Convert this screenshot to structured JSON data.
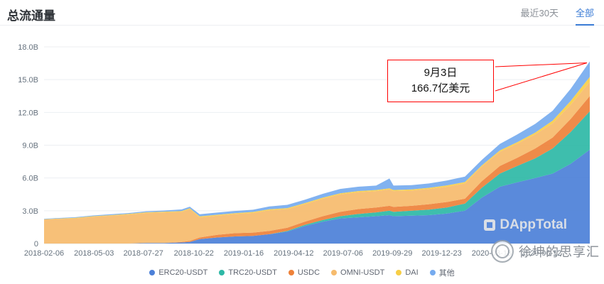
{
  "header": {
    "title": "总流通量",
    "tabs": [
      {
        "label": "最近30天",
        "active": false
      },
      {
        "label": "全部",
        "active": true
      }
    ]
  },
  "annotation": {
    "date": "9月3日",
    "value": "166.7亿美元"
  },
  "watermarks": {
    "chart": "DAppTotal",
    "stamp": "徐坤的思享汇"
  },
  "colors": {
    "accent_blue": "#3a7bd5",
    "annotation_red": "#ff0000",
    "grid": "#eceff2",
    "axis_text": "#66727e"
  },
  "chart_data": {
    "type": "area",
    "stacked": true,
    "title": "总流通量",
    "xlabel": "",
    "ylabel": "",
    "ylim": [
      0,
      18
    ],
    "grid": true,
    "legend_position": "bottom",
    "yticks": [
      {
        "v": 0,
        "label": "0"
      },
      {
        "v": 3,
        "label": "3.0B"
      },
      {
        "v": 6,
        "label": "6.0B"
      },
      {
        "v": 9,
        "label": "9.0B"
      },
      {
        "v": 12,
        "label": "12.0B"
      },
      {
        "v": 15,
        "label": "15.0B"
      },
      {
        "v": 18,
        "label": "18.0B"
      }
    ],
    "xticks": [
      "2018-02-06",
      "2018-05-03",
      "2018-07-27",
      "2018-10-22",
      "2019-01-16",
      "2019-04-12",
      "2019-07-06",
      "2019-09-29",
      "2019-12-23",
      "2020-03-18",
      "2020-06-12"
    ],
    "x": [
      "2018-02-06",
      "2018-03-01",
      "2018-04-01",
      "2018-05-01",
      "2018-06-01",
      "2018-07-01",
      "2018-08-01",
      "2018-09-01",
      "2018-10-01",
      "2018-10-15",
      "2018-11-01",
      "2018-12-01",
      "2019-01-01",
      "2019-02-01",
      "2019-03-01",
      "2019-04-01",
      "2019-05-01",
      "2019-06-01",
      "2019-07-01",
      "2019-08-01",
      "2019-09-01",
      "2019-09-24",
      "2019-10-01",
      "2019-11-01",
      "2019-12-01",
      "2020-01-01",
      "2020-02-01",
      "2020-03-01",
      "2020-04-01",
      "2020-05-01",
      "2020-06-01",
      "2020-07-01",
      "2020-08-01",
      "2020-09-03"
    ],
    "series": [
      {
        "name": "ERC20-USDT",
        "color": "#4c80d8",
        "values": [
          0,
          0,
          0,
          0,
          0,
          0,
          0.05,
          0.05,
          0.1,
          0.15,
          0.4,
          0.55,
          0.65,
          0.7,
          0.85,
          1.1,
          1.6,
          2.0,
          2.3,
          2.4,
          2.5,
          2.6,
          2.5,
          2.55,
          2.6,
          2.75,
          3.0,
          4.2,
          5.2,
          5.6,
          6.0,
          6.4,
          7.3,
          8.6
        ]
      },
      {
        "name": "TRC20-USDT",
        "color": "#2eb8a6",
        "values": [
          0,
          0,
          0,
          0,
          0,
          0,
          0,
          0,
          0,
          0,
          0,
          0,
          0,
          0,
          0,
          0.05,
          0.1,
          0.15,
          0.2,
          0.3,
          0.35,
          0.4,
          0.4,
          0.45,
          0.5,
          0.55,
          0.65,
          0.9,
          1.2,
          1.5,
          1.8,
          2.3,
          2.9,
          3.5
        ]
      },
      {
        "name": "USDC",
        "color": "#ee8139",
        "values": [
          0,
          0,
          0,
          0,
          0,
          0,
          0,
          0,
          0.05,
          0.1,
          0.15,
          0.25,
          0.3,
          0.3,
          0.3,
          0.3,
          0.3,
          0.35,
          0.4,
          0.45,
          0.45,
          0.45,
          0.45,
          0.45,
          0.5,
          0.5,
          0.45,
          0.6,
          0.7,
          0.75,
          0.9,
          1.0,
          1.2,
          1.4
        ]
      },
      {
        "name": "OMNI-USDT",
        "color": "#f6bb6d",
        "values": [
          2.2,
          2.25,
          2.3,
          2.45,
          2.55,
          2.65,
          2.75,
          2.8,
          2.75,
          2.9,
          1.85,
          1.75,
          1.75,
          1.8,
          1.9,
          1.7,
          1.6,
          1.6,
          1.6,
          1.55,
          1.5,
          1.5,
          1.45,
          1.4,
          1.4,
          1.4,
          1.4,
          1.35,
          1.3,
          1.3,
          1.3,
          1.3,
          1.3,
          1.3
        ]
      },
      {
        "name": "DAI",
        "color": "#f7ce46",
        "values": [
          0.02,
          0.03,
          0.05,
          0.05,
          0.05,
          0.06,
          0.06,
          0.07,
          0.07,
          0.07,
          0.08,
          0.08,
          0.08,
          0.09,
          0.09,
          0.09,
          0.1,
          0.1,
          0.1,
          0.1,
          0.1,
          0.1,
          0.1,
          0.1,
          0.1,
          0.12,
          0.13,
          0.1,
          0.12,
          0.13,
          0.15,
          0.25,
          0.35,
          0.45
        ]
      },
      {
        "name": "其他",
        "color": "#76abef",
        "values": [
          0.05,
          0.05,
          0.06,
          0.07,
          0.08,
          0.08,
          0.09,
          0.1,
          0.15,
          0.15,
          0.2,
          0.2,
          0.2,
          0.2,
          0.25,
          0.3,
          0.3,
          0.35,
          0.4,
          0.4,
          0.4,
          0.9,
          0.4,
          0.4,
          0.4,
          0.45,
          0.5,
          0.5,
          0.6,
          0.7,
          0.8,
          0.9,
          1.1,
          1.42
        ]
      }
    ],
    "annotation_point": {
      "date": "2020-09-03",
      "total_b": 16.67
    }
  }
}
